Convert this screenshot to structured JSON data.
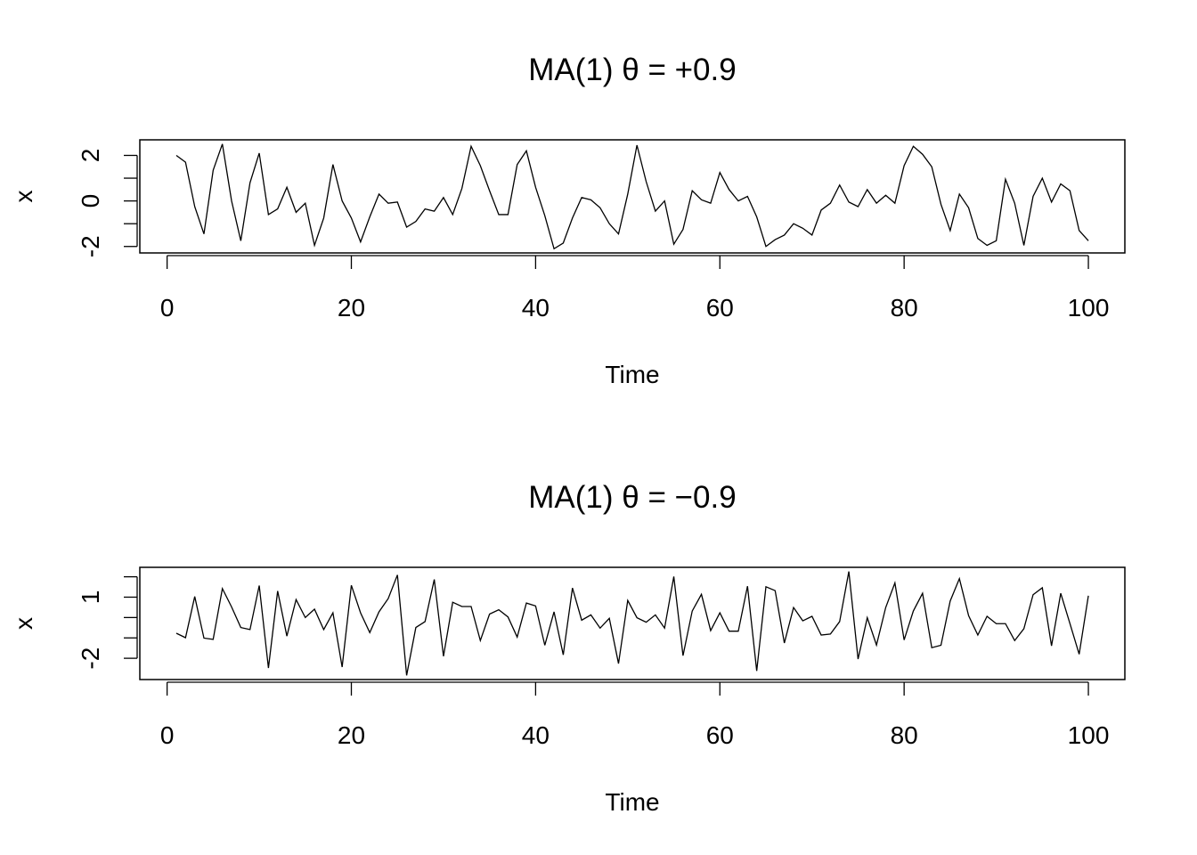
{
  "chart_data": [
    {
      "type": "line",
      "title": "MA(1)   θ = +0.9",
      "xlabel": "Time",
      "ylabel": "x",
      "xlim": [
        1,
        100
      ],
      "x_ticks": [
        0,
        20,
        40,
        60,
        80,
        100
      ],
      "x_tick_labels": [
        "0",
        "20",
        "40",
        "60",
        "80",
        "100"
      ],
      "y_ticks": [
        -2,
        -1,
        0,
        1,
        2
      ],
      "y_tick_labels": [
        "-2",
        "",
        "0",
        "",
        "2"
      ],
      "grid": false,
      "series": [
        {
          "name": "x",
          "color": "#000000",
          "values": [
            2.0,
            1.7,
            -0.25,
            -1.45,
            1.35,
            2.5,
            0,
            -1.75,
            0.8,
            2.1,
            -0.6,
            -0.35,
            0.6,
            -0.5,
            -0.1,
            -1.95,
            -0.75,
            1.6,
            0,
            -0.75,
            -1.8,
            -0.7,
            0.3,
            -0.1,
            -0.05,
            -1.15,
            -0.9,
            -0.35,
            -0.45,
            0.15,
            -0.6,
            0.55,
            2.4,
            1.55,
            0.45,
            -0.6,
            -0.6,
            1.6,
            2.2,
            0.6,
            -0.65,
            -2.1,
            -1.85,
            -0.75,
            0.15,
            0.05,
            -0.3,
            -1.0,
            -1.45,
            0.3,
            2.45,
            0.85,
            -0.45,
            0,
            -1.9,
            -1.25,
            0.45,
            0.05,
            -0.1,
            1.25,
            0.5,
            0,
            0.2,
            -0.7,
            -2.0,
            -1.7,
            -1.5,
            -1.0,
            -1.2,
            -1.5,
            -0.4,
            -0.1,
            0.7,
            -0.05,
            -0.25,
            0.5,
            -0.1,
            0.25,
            -0.1,
            1.55,
            2.4,
            2.05,
            1.5,
            -0.15,
            -1.3,
            0.3,
            -0.3,
            -1.65,
            -1.95,
            -1.75,
            0.95,
            -0.1,
            -1.95,
            0.2,
            1.0,
            -0.05,
            0.75,
            0.45,
            -1.3,
            -1.75
          ]
        }
      ]
    },
    {
      "type": "line",
      "title": "MA(1)   θ = −0.9",
      "xlabel": "Time",
      "ylabel": "x",
      "xlim": [
        1,
        100
      ],
      "x_ticks": [
        0,
        20,
        40,
        60,
        80,
        100
      ],
      "x_tick_labels": [
        "0",
        "20",
        "40",
        "60",
        "80",
        "100"
      ],
      "y_ticks": [
        -2,
        -1,
        0,
        1,
        2
      ],
      "y_tick_labels": [
        "-2",
        "",
        "",
        "1",
        ""
      ],
      "grid": false,
      "series": [
        {
          "name": "x",
          "color": "#000000",
          "values": [
            -0.77,
            -0.99,
            1.03,
            -1.01,
            -1.07,
            1.42,
            0.52,
            -0.49,
            -0.59,
            1.57,
            -2.48,
            1.3,
            -0.91,
            0.88,
            0,
            0.41,
            -0.59,
            0.23,
            -2.43,
            1.58,
            0.23,
            -0.74,
            0.28,
            0.93,
            2.09,
            -2.84,
            -0.49,
            -0.2,
            1.87,
            -1.9,
            0.75,
            0.54,
            0.54,
            -1.13,
            0.17,
            0.38,
            0.03,
            -0.96,
            0.71,
            0.57,
            -1.36,
            0.28,
            -1.83,
            1.45,
            -0.13,
            0.13,
            -0.52,
            -0.04,
            -2.26,
            0.84,
            -0.01,
            -0.23,
            0.13,
            -0.52,
            2.01,
            -1.87,
            0.32,
            1.14,
            -0.64,
            0.23,
            -0.67,
            -0.67,
            1.54,
            -2.62,
            1.51,
            1.32,
            -1.25,
            0.49,
            -0.16,
            0.06,
            -0.86,
            -0.81,
            -0.2,
            2.26,
            -2.04,
            -0.01,
            -1.35,
            0.49,
            1.7,
            -1.1,
            0.32,
            1.19,
            -1.48,
            -1.36,
            0.81,
            1.91,
            0.09,
            -0.86,
            0.06,
            -0.3,
            -0.3,
            -1.13,
            -0.55,
            1.12,
            1.46,
            -1.39,
            1.19,
            -0.3,
            -1.8,
            1.07
          ]
        }
      ]
    }
  ]
}
